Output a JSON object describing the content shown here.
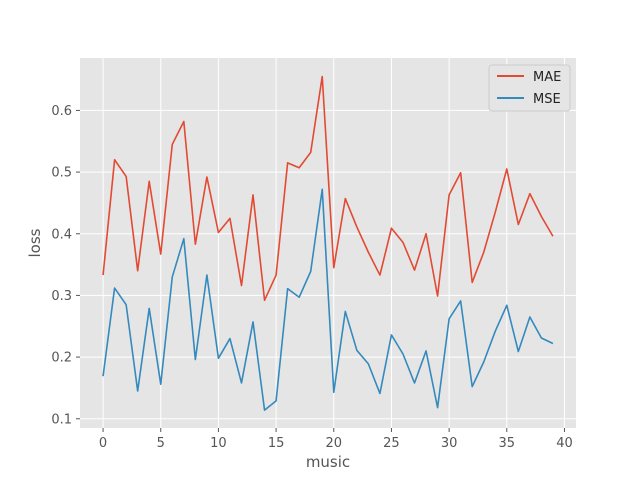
{
  "chart_data": {
    "type": "line",
    "xlabel": "music",
    "ylabel": "loss",
    "xlim": [
      -2,
      41
    ],
    "ylim": [
      0.085,
      0.685
    ],
    "xticks": [
      0,
      5,
      10,
      15,
      20,
      25,
      30,
      35,
      40
    ],
    "xtick_labels": [
      "0",
      "5",
      "10",
      "15",
      "20",
      "25",
      "30",
      "35",
      "40"
    ],
    "yticks": [
      0.1,
      0.2,
      0.3,
      0.4,
      0.5,
      0.6
    ],
    "ytick_labels": [
      "0.1",
      "0.2",
      "0.3",
      "0.4",
      "0.5",
      "0.6"
    ],
    "grid": true,
    "legend_position": "top-right",
    "x": [
      0,
      1,
      2,
      3,
      4,
      5,
      6,
      7,
      8,
      9,
      10,
      11,
      12,
      13,
      14,
      15,
      16,
      17,
      18,
      19,
      20,
      21,
      22,
      23,
      24,
      25,
      26,
      27,
      28,
      29,
      30,
      31,
      32,
      33,
      34,
      35,
      36,
      37,
      38,
      39
    ],
    "series": [
      {
        "name": "MAE",
        "color": "#E24A33",
        "values": [
          0.333,
          0.52,
          0.493,
          0.34,
          0.485,
          0.367,
          0.545,
          0.582,
          0.383,
          0.492,
          0.402,
          0.425,
          0.316,
          0.463,
          0.292,
          0.333,
          0.515,
          0.507,
          0.532,
          0.655,
          0.345,
          0.457,
          0.411,
          0.37,
          0.333,
          0.409,
          0.386,
          0.341,
          0.4,
          0.299,
          0.463,
          0.499,
          0.321,
          0.37,
          0.435,
          0.505,
          0.415,
          0.465,
          0.428,
          0.396
        ]
      },
      {
        "name": "MSE",
        "color": "#348ABD",
        "values": [
          0.169,
          0.312,
          0.285,
          0.145,
          0.279,
          0.156,
          0.33,
          0.392,
          0.196,
          0.333,
          0.198,
          0.23,
          0.158,
          0.257,
          0.114,
          0.129,
          0.311,
          0.297,
          0.339,
          0.472,
          0.143,
          0.274,
          0.211,
          0.189,
          0.141,
          0.236,
          0.205,
          0.158,
          0.21,
          0.118,
          0.262,
          0.291,
          0.152,
          0.192,
          0.242,
          0.284,
          0.209,
          0.265,
          0.231,
          0.222
        ]
      }
    ]
  }
}
